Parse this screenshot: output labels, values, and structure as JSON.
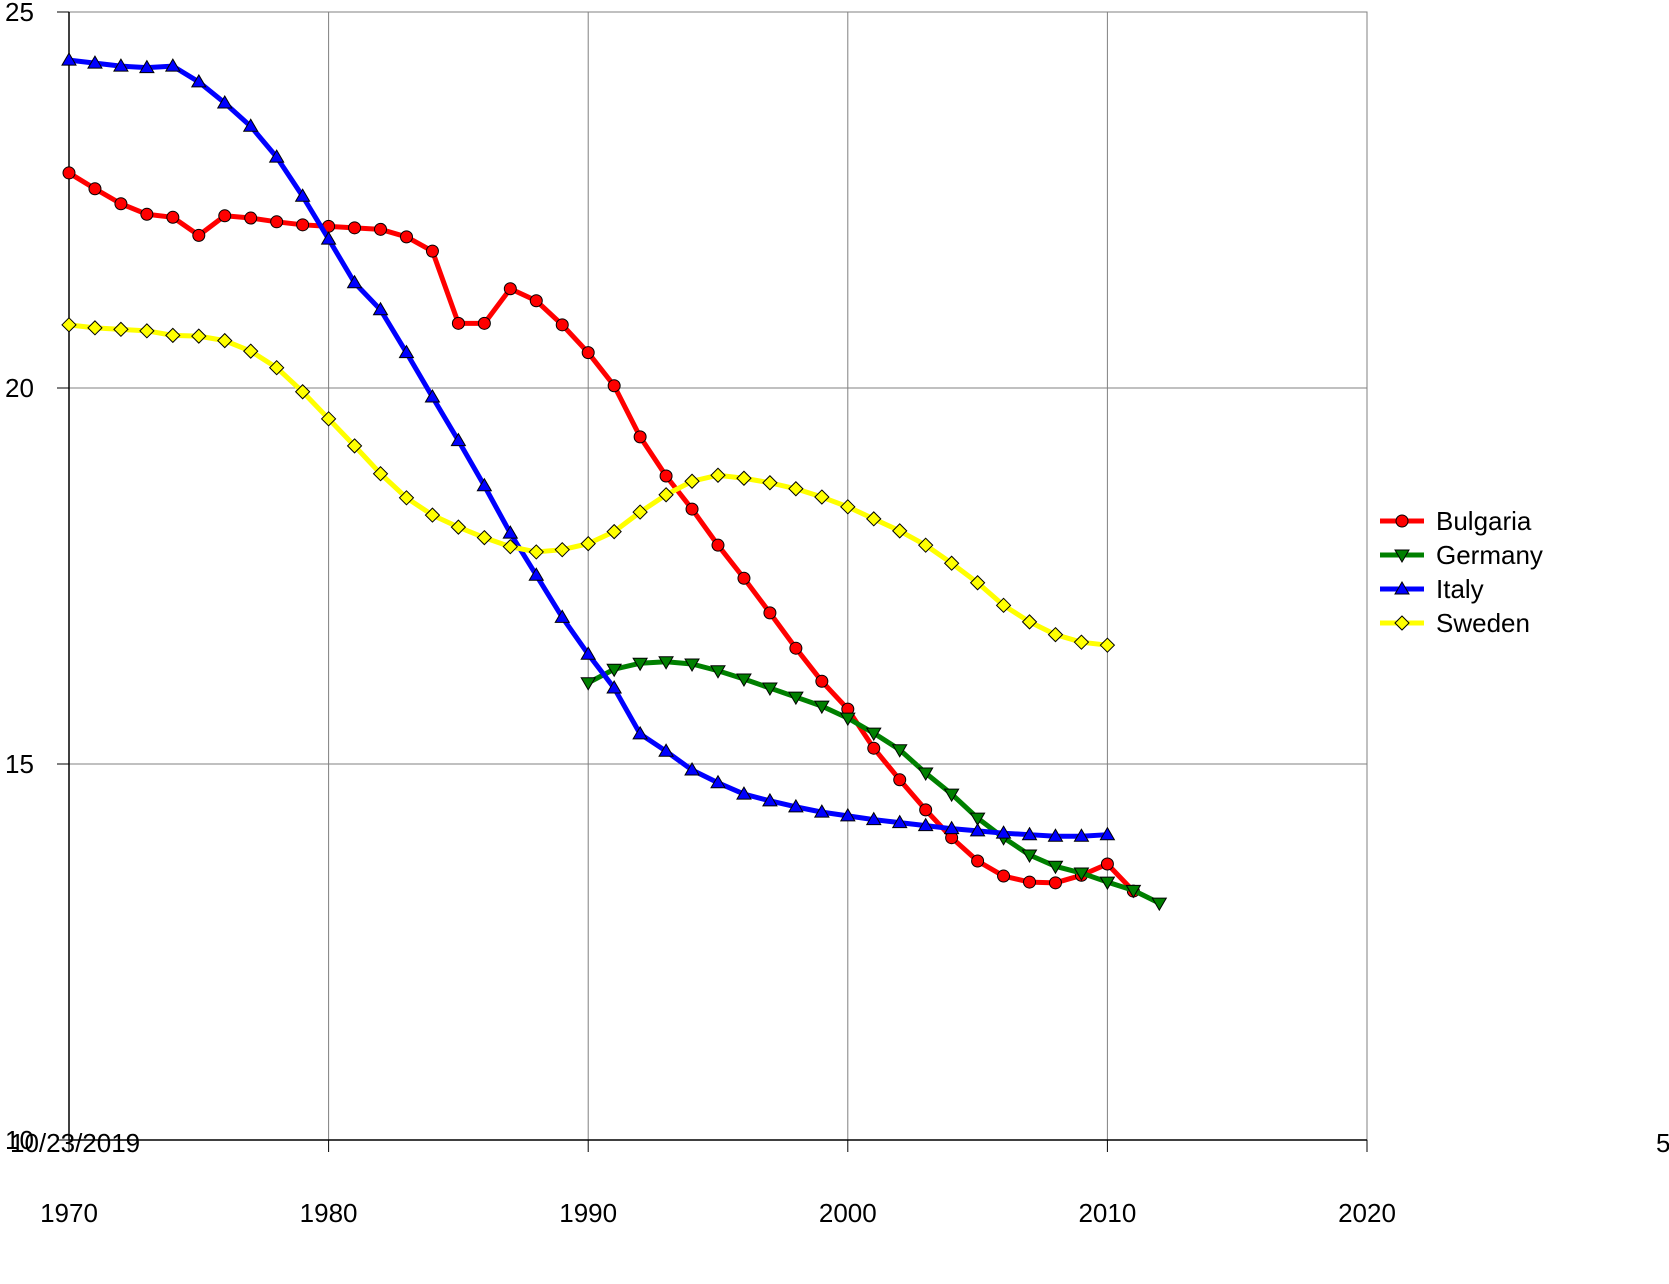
{
  "chart_data": {
    "type": "line",
    "footer_left": "10/23/2019",
    "footer_right": "5",
    "xlim": [
      1970,
      2020
    ],
    "xticks": [
      1970,
      1980,
      1990,
      2000,
      2010,
      2020
    ],
    "ylim": [
      10,
      25
    ],
    "yticks": [
      10,
      15,
      20,
      25
    ],
    "grid": true,
    "legend": "right",
    "series": [
      {
        "name": "Bulgaria",
        "color": "#ff0000",
        "marker": "circle",
        "x": [
          1970,
          1971,
          1972,
          1973,
          1974,
          1975,
          1976,
          1977,
          1978,
          1979,
          1980,
          1981,
          1982,
          1983,
          1984,
          1985,
          1986,
          1987,
          1988,
          1989,
          1990,
          1991,
          1992,
          1993,
          1994,
          1995,
          1996,
          1997,
          1998,
          1999,
          2000,
          2001,
          2002,
          2003,
          2004,
          2005,
          2006,
          2007,
          2008,
          2009,
          2010,
          2011
        ],
        "values": [
          22.86,
          22.65,
          22.45,
          22.31,
          22.27,
          22.03,
          22.29,
          22.26,
          22.21,
          22.17,
          22.15,
          22.13,
          22.11,
          22.01,
          21.82,
          20.86,
          20.86,
          21.32,
          21.16,
          20.84,
          20.47,
          20.03,
          19.35,
          18.83,
          18.39,
          17.91,
          17.47,
          17.01,
          16.54,
          16.1,
          15.73,
          15.21,
          14.79,
          14.39,
          14.02,
          13.71,
          13.51,
          13.43,
          13.42,
          13.52,
          13.67,
          13.31
        ]
      },
      {
        "name": "Germany",
        "color": "#008000",
        "marker": "triangle-down",
        "x": [
          1990,
          1991,
          1992,
          1993,
          1994,
          1995,
          1996,
          1997,
          1998,
          1999,
          2000,
          2001,
          2002,
          2003,
          2004,
          2005,
          2006,
          2007,
          2008,
          2009,
          2010,
          2011,
          2012
        ],
        "values": [
          16.08,
          16.26,
          16.34,
          16.36,
          16.33,
          16.24,
          16.13,
          16.01,
          15.89,
          15.77,
          15.61,
          15.41,
          15.19,
          14.88,
          14.6,
          14.28,
          14.02,
          13.79,
          13.64,
          13.55,
          13.43,
          13.32,
          13.15
        ]
      },
      {
        "name": "Italy",
        "color": "#0000ff",
        "marker": "triangle-up",
        "x": [
          1970,
          1971,
          1972,
          1973,
          1974,
          1975,
          1976,
          1977,
          1978,
          1979,
          1980,
          1981,
          1982,
          1983,
          1984,
          1985,
          1986,
          1987,
          1988,
          1989,
          1990,
          1991,
          1992,
          1993,
          1994,
          1995,
          1996,
          1997,
          1998,
          1999,
          2000,
          2001,
          2002,
          2003,
          2004,
          2005,
          2006,
          2007,
          2008,
          2009,
          2010
        ],
        "values": [
          24.36,
          24.32,
          24.28,
          24.26,
          24.28,
          24.07,
          23.79,
          23.48,
          23.07,
          22.55,
          21.98,
          21.4,
          21.04,
          20.47,
          19.88,
          19.3,
          18.7,
          18.07,
          17.51,
          16.95,
          16.46,
          16.01,
          15.4,
          15.17,
          14.92,
          14.75,
          14.6,
          14.51,
          14.43,
          14.36,
          14.31,
          14.26,
          14.22,
          14.18,
          14.14,
          14.11,
          14.08,
          14.06,
          14.04,
          14.04,
          14.06
        ]
      },
      {
        "name": "Sweden",
        "color": "#ffff00",
        "marker": "diamond",
        "x": [
          1970,
          1971,
          1972,
          1973,
          1974,
          1975,
          1976,
          1977,
          1978,
          1979,
          1980,
          1981,
          1982,
          1983,
          1984,
          1985,
          1986,
          1987,
          1988,
          1989,
          1990,
          1991,
          1992,
          1993,
          1994,
          1995,
          1996,
          1997,
          1998,
          1999,
          2000,
          2001,
          2002,
          2003,
          2004,
          2005,
          2006,
          2007,
          2008,
          2009,
          2010
        ],
        "values": [
          20.84,
          20.8,
          20.78,
          20.76,
          20.7,
          20.69,
          20.63,
          20.49,
          20.27,
          19.95,
          19.59,
          19.23,
          18.86,
          18.54,
          18.31,
          18.15,
          18.01,
          17.89,
          17.82,
          17.85,
          17.93,
          18.09,
          18.35,
          18.58,
          18.76,
          18.84,
          18.8,
          18.74,
          18.66,
          18.55,
          18.42,
          18.26,
          18.1,
          17.91,
          17.67,
          17.41,
          17.11,
          16.89,
          16.72,
          16.62,
          16.58
        ]
      }
    ]
  }
}
